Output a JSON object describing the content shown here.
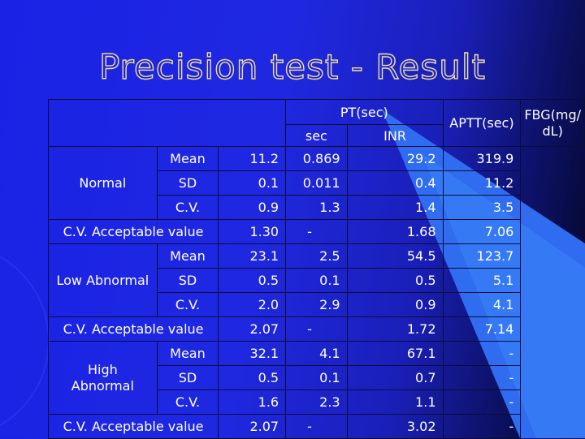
{
  "title": "Precision test - Result",
  "table": {
    "header": {
      "pt": "PT(sec)",
      "sec": "sec",
      "inr": "INR",
      "aptt": "APTT(sec)",
      "fbg_line1": "FBG(mg/",
      "fbg_line2": "dL)"
    },
    "groups": [
      {
        "name_line1": "Normal",
        "name_line2": "",
        "rows": [
          {
            "stat": "Mean",
            "sec": "11.2",
            "inr": "0.869",
            "aptt": "29.2",
            "fbg": "319.9"
          },
          {
            "stat": "SD",
            "sec": "0.1",
            "inr": "0.011",
            "aptt": "0.4",
            "fbg": "11.2"
          },
          {
            "stat": "C.V.",
            "sec": "0.9",
            "inr": "1.3",
            "aptt": "1.4",
            "fbg": "3.5"
          }
        ],
        "acceptable": {
          "label": "C.V. Acceptable value",
          "sec": "1.30",
          "inr": "-",
          "aptt": "1.68",
          "fbg": "7.06"
        }
      },
      {
        "name_line1": "Low Abnormal",
        "name_line2": "",
        "rows": [
          {
            "stat": "Mean",
            "sec": "23.1",
            "inr": "2.5",
            "aptt": "54.5",
            "fbg": "123.7"
          },
          {
            "stat": "SD",
            "sec": "0.5",
            "inr": "0.1",
            "aptt": "0.5",
            "fbg": "5.1"
          },
          {
            "stat": "C.V.",
            "sec": "2.0",
            "inr": "2.9",
            "aptt": "0.9",
            "fbg": "4.1"
          }
        ],
        "acceptable": {
          "label": "C.V. Acceptable value",
          "sec": "2.07",
          "inr": "-",
          "aptt": "1.72",
          "fbg": "7.14"
        }
      },
      {
        "name_line1": "High",
        "name_line2": "Abnormal",
        "rows": [
          {
            "stat": "Mean",
            "sec": "32.1",
            "inr": "4.1",
            "aptt": "67.1",
            "fbg": "-"
          },
          {
            "stat": "SD",
            "sec": "0.5",
            "inr": "0.1",
            "aptt": "0.7",
            "fbg": "-"
          },
          {
            "stat": "C.V.",
            "sec": "1.6",
            "inr": "2.3",
            "aptt": "1.1",
            "fbg": "-"
          }
        ],
        "acceptable": {
          "label": "C.V. Acceptable value",
          "sec": "2.07",
          "inr": "-",
          "aptt": "3.02",
          "fbg": "-"
        }
      }
    ]
  }
}
